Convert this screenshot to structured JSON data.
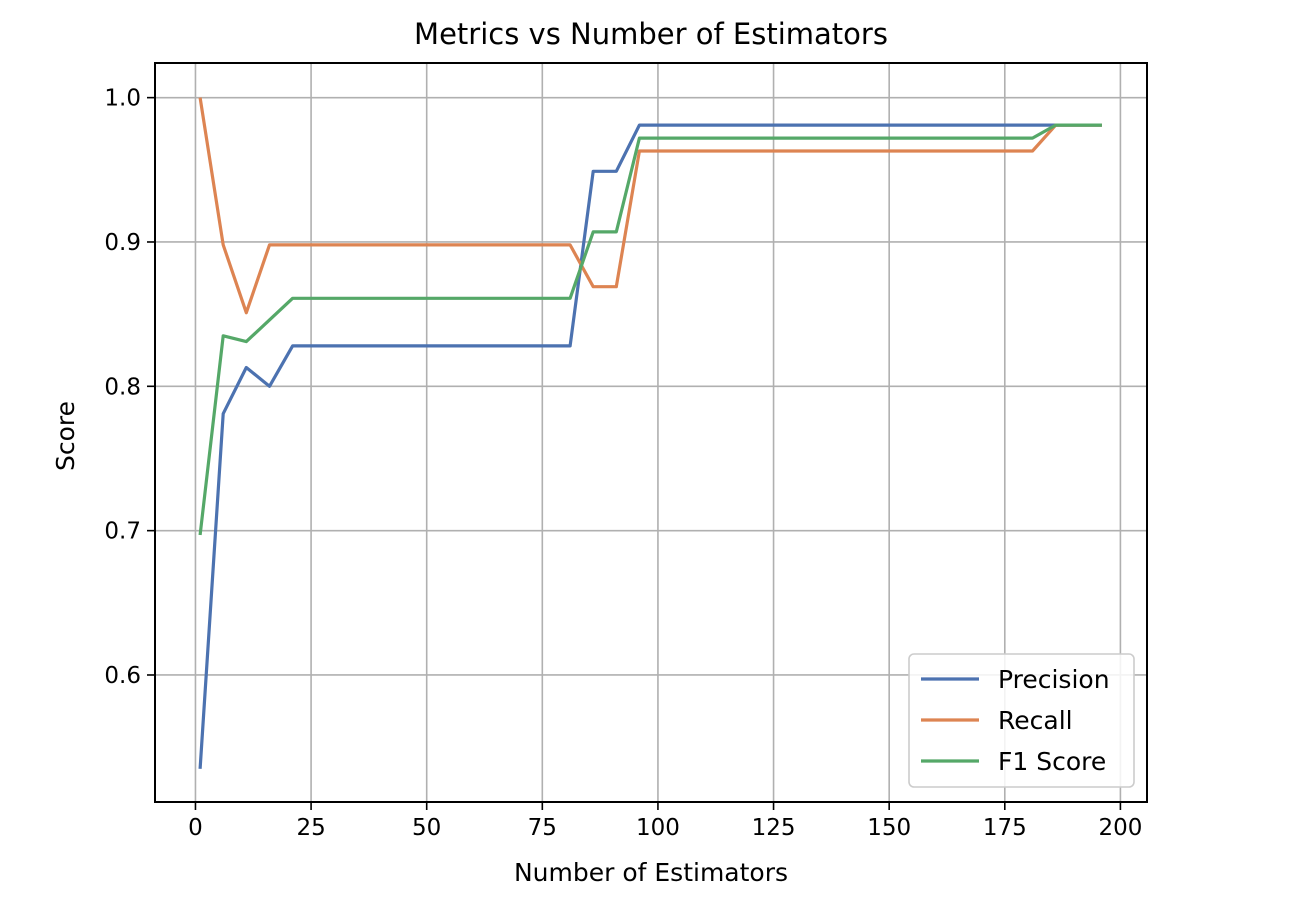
{
  "chart_data": {
    "type": "line",
    "title": "Metrics vs Number of Estimators",
    "xlabel": "Number of Estimators",
    "ylabel": "Score",
    "xlim": [
      -8.75,
      205.75
    ],
    "ylim": [
      0.512,
      1.024
    ],
    "xticks": [
      0,
      25,
      50,
      75,
      100,
      125,
      150,
      175,
      200
    ],
    "yticks": [
      0.6,
      0.7,
      0.8,
      0.9,
      1.0
    ],
    "ytick_labels": [
      "0.6",
      "0.7",
      "0.8",
      "0.9",
      "1.0"
    ],
    "grid": true,
    "legend_position": "lower-right",
    "x": [
      1,
      6,
      11,
      16,
      21,
      26,
      31,
      36,
      41,
      46,
      51,
      56,
      61,
      66,
      71,
      76,
      81,
      86,
      91,
      96,
      101,
      106,
      111,
      116,
      121,
      126,
      131,
      136,
      141,
      146,
      151,
      156,
      161,
      166,
      171,
      176,
      181,
      186,
      191,
      196
    ],
    "series": [
      {
        "name": "Precision",
        "color": "#4c72b0",
        "values": [
          0.535,
          0.781,
          0.813,
          0.8,
          0.828,
          0.828,
          0.828,
          0.828,
          0.828,
          0.828,
          0.828,
          0.828,
          0.828,
          0.828,
          0.828,
          0.828,
          0.828,
          0.949,
          0.949,
          0.981,
          0.981,
          0.981,
          0.981,
          0.981,
          0.981,
          0.981,
          0.981,
          0.981,
          0.981,
          0.981,
          0.981,
          0.981,
          0.981,
          0.981,
          0.981,
          0.981,
          0.981,
          0.981,
          0.981,
          0.981
        ]
      },
      {
        "name": "Recall",
        "color": "#dd8452",
        "values": [
          1.0,
          0.898,
          0.851,
          0.898,
          0.898,
          0.898,
          0.898,
          0.898,
          0.898,
          0.898,
          0.898,
          0.898,
          0.898,
          0.898,
          0.898,
          0.898,
          0.898,
          0.869,
          0.869,
          0.963,
          0.963,
          0.963,
          0.963,
          0.963,
          0.963,
          0.963,
          0.963,
          0.963,
          0.963,
          0.963,
          0.963,
          0.963,
          0.963,
          0.963,
          0.963,
          0.963,
          0.963,
          0.981,
          0.981,
          0.981
        ]
      },
      {
        "name": "F1 Score",
        "color": "#55a868",
        "values": [
          0.697,
          0.835,
          0.831,
          0.846,
          0.861,
          0.861,
          0.861,
          0.861,
          0.861,
          0.861,
          0.861,
          0.861,
          0.861,
          0.861,
          0.861,
          0.861,
          0.861,
          0.907,
          0.907,
          0.972,
          0.972,
          0.972,
          0.972,
          0.972,
          0.972,
          0.972,
          0.972,
          0.972,
          0.972,
          0.972,
          0.972,
          0.972,
          0.972,
          0.972,
          0.972,
          0.972,
          0.972,
          0.981,
          0.981,
          0.981
        ]
      }
    ]
  }
}
